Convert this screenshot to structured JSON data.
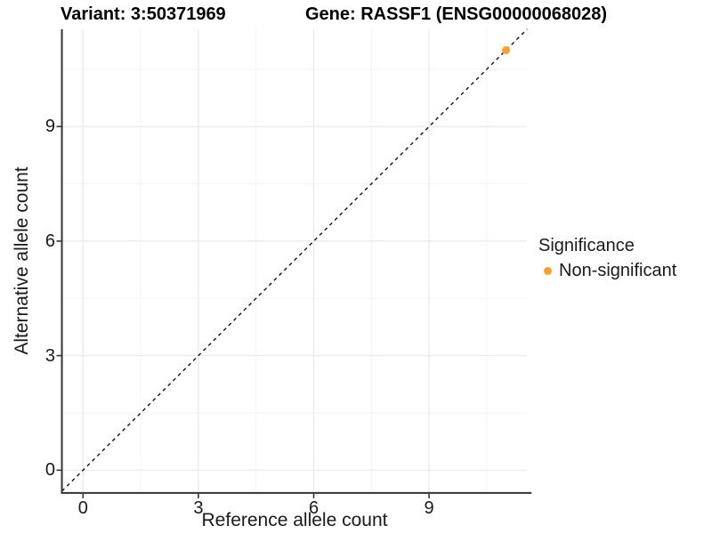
{
  "header": {
    "variant_title": "Variant: 3:50371969",
    "gene_title": "Gene: RASSF1 (ENSG00000068028)"
  },
  "chart_data": {
    "type": "scatter",
    "xlabel": "Reference allele count",
    "ylabel": "Alternative allele count",
    "x_ticks": [
      0,
      3,
      6,
      9
    ],
    "y_ticks": [
      0,
      3,
      6,
      9
    ],
    "x_minor_gridlines": [
      1.5,
      4.5,
      7.5,
      10.5
    ],
    "y_minor_gridlines": [
      1.5,
      4.5,
      7.5,
      10.5
    ],
    "xlim": [
      -0.55,
      11.55
    ],
    "ylim": [
      -0.55,
      11.55
    ],
    "grid": "major and minor, light gray on white",
    "identity_line": {
      "style": "dashed",
      "slope": 1,
      "intercept": 0
    },
    "series": [
      {
        "name": "Non-significant",
        "color": "#F9A12B",
        "points": [
          {
            "x": 11,
            "y": 11
          }
        ]
      }
    ],
    "legend": {
      "position": "right",
      "title": "Significance",
      "entries": [
        {
          "label": "Non-significant",
          "color": "#F9A12B"
        }
      ]
    },
    "colors": {
      "grid_major": "#E9E9E9",
      "grid_minor": "#F3F3F3",
      "axis_line": "#333333",
      "tick_mark": "#333333",
      "identity_line": "#111111",
      "point_fill": "#F9A12B"
    }
  }
}
